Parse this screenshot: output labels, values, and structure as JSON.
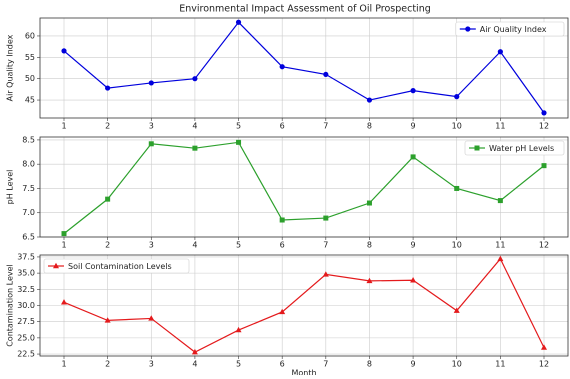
{
  "title": "Environmental Impact Assessment of Oil Prospecting",
  "chart_data": [
    {
      "type": "line",
      "ylabel": "Air Quality Index",
      "legend": "upper right",
      "grid": true,
      "marker": "circle",
      "x": [
        1,
        2,
        3,
        4,
        5,
        6,
        7,
        8,
        9,
        10,
        11,
        12
      ],
      "xlim": [
        0.45,
        12.55
      ],
      "xticks": [
        1,
        2,
        3,
        4,
        5,
        6,
        7,
        8,
        9,
        10,
        11,
        12
      ],
      "ylim": [
        40.8,
        64.2
      ],
      "yticks": [
        45,
        50,
        55,
        60
      ],
      "series": [
        {
          "name": "Air Quality Index",
          "color": "#0000dd",
          "values": [
            56.5,
            47.8,
            49,
            50,
            63.2,
            52.8,
            51,
            45,
            47.2,
            45.8,
            56.3,
            42
          ]
        }
      ]
    },
    {
      "type": "line",
      "ylabel": "pH Level",
      "legend": "upper right",
      "grid": true,
      "marker": "square",
      "x": [
        1,
        2,
        3,
        4,
        5,
        6,
        7,
        8,
        9,
        10,
        11,
        12
      ],
      "xlim": [
        0.45,
        12.55
      ],
      "xticks": [
        1,
        2,
        3,
        4,
        5,
        6,
        7,
        8,
        9,
        10,
        11,
        12
      ],
      "ylim": [
        6.5,
        8.56
      ],
      "yticks": [
        {
          "value": 6.5,
          "label": "6.5"
        },
        {
          "value": 7,
          "label": "7.0"
        },
        {
          "value": 7.5,
          "label": "7.5"
        },
        {
          "value": 8,
          "label": "8.0"
        },
        {
          "value": 8.5,
          "label": "8.5"
        }
      ],
      "series": [
        {
          "name": "Water pH Levels",
          "color": "#2ca02c",
          "values": [
            6.57,
            7.28,
            8.42,
            8.33,
            8.45,
            6.85,
            6.89,
            7.2,
            8.15,
            7.5,
            7.25,
            7.97
          ]
        }
      ]
    },
    {
      "type": "line",
      "ylabel": "Contamination Level",
      "xlabel": "Month",
      "legend": "upper left",
      "grid": true,
      "marker": "triangle",
      "x": [
        1,
        2,
        3,
        4,
        5,
        6,
        7,
        8,
        9,
        10,
        11,
        12
      ],
      "xlim": [
        0.45,
        12.55
      ],
      "xticks": [
        1,
        2,
        3,
        4,
        5,
        6,
        7,
        8,
        9,
        10,
        11,
        12
      ],
      "ylim": [
        22.2,
        37.8
      ],
      "yticks": [
        22.5,
        {
          "value": 25,
          "label": "25.0"
        },
        27.5,
        {
          "value": 30,
          "label": "30.0"
        },
        32.5,
        {
          "value": 35,
          "label": "35.0"
        },
        37.5
      ],
      "series": [
        {
          "name": "Soil Contamination Levels",
          "color": "#e41a1c",
          "values": [
            30.5,
            27.7,
            28,
            22.8,
            26.2,
            29,
            34.8,
            33.8,
            33.9,
            29.2,
            37.2,
            23.5
          ]
        }
      ]
    }
  ]
}
